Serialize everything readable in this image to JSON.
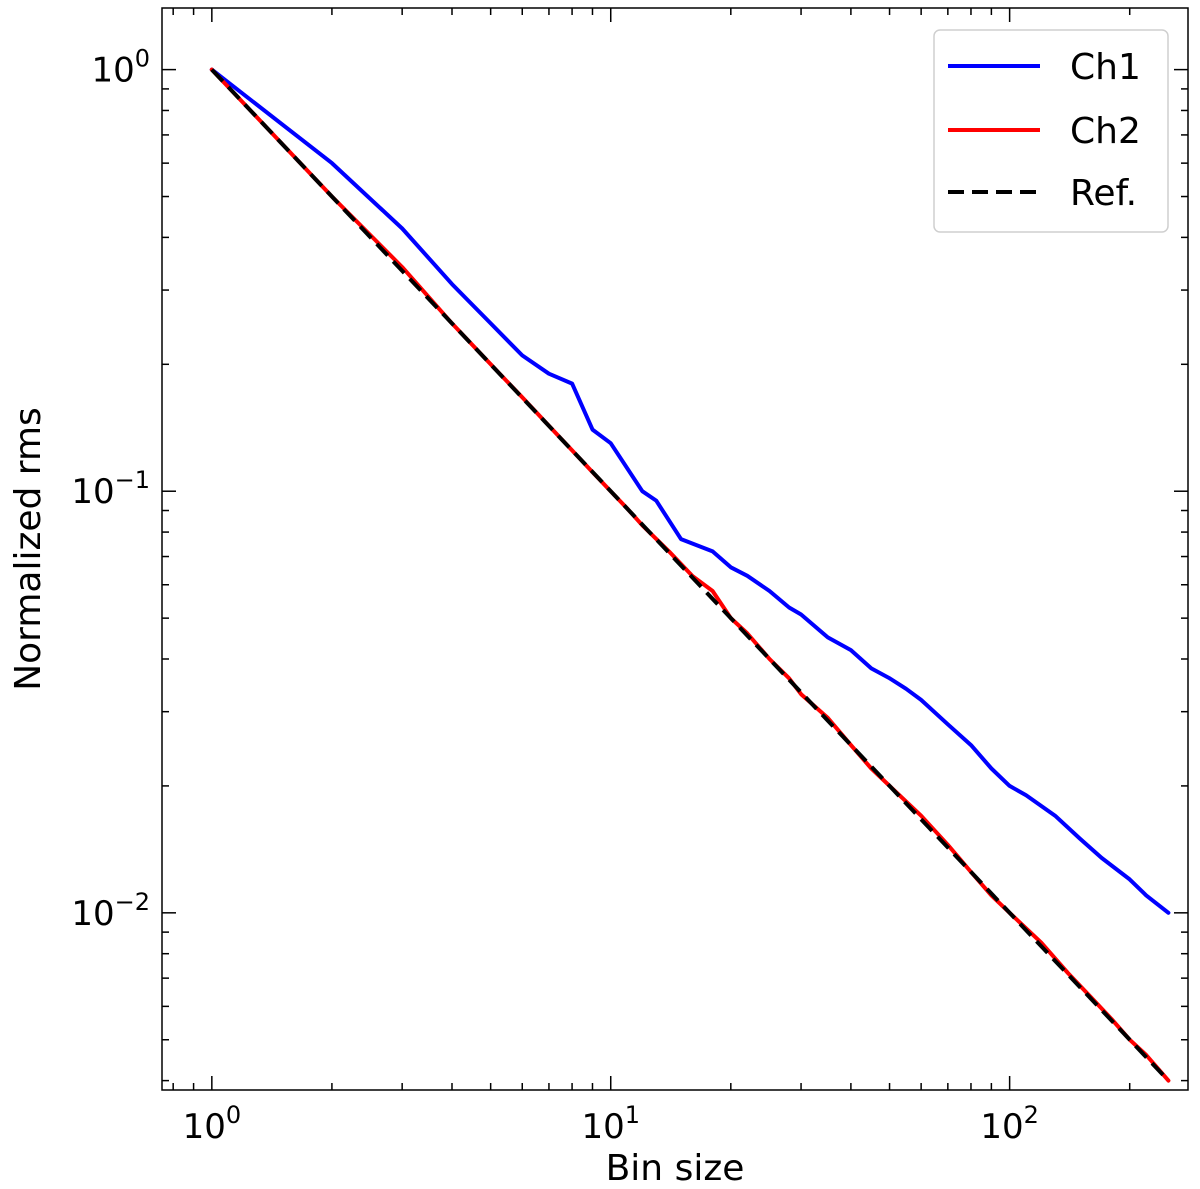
{
  "chart_data": {
    "type": "line",
    "title": "",
    "xlabel": "Bin size",
    "ylabel": "Normalized rms",
    "xscale": "log",
    "yscale": "log",
    "xlim": [
      0.75,
      280
    ],
    "ylim": [
      0.0038,
      1.4
    ],
    "grid": false,
    "legend_position": "top-right",
    "x_ticks": [
      {
        "value": 1,
        "base": "10",
        "exp": "0"
      },
      {
        "value": 10,
        "base": "10",
        "exp": "1"
      },
      {
        "value": 100,
        "base": "10",
        "exp": "2"
      }
    ],
    "y_ticks": [
      {
        "value": 1,
        "base": "10",
        "exp": "0"
      },
      {
        "value": 0.1,
        "base": "10",
        "exp": "−1"
      },
      {
        "value": 0.01,
        "base": "10",
        "exp": "−2"
      }
    ],
    "series": [
      {
        "name": "Ch1",
        "color": "#0000ff",
        "style": "solid",
        "points": [
          [
            1,
            1.0
          ],
          [
            2,
            0.6
          ],
          [
            3,
            0.42
          ],
          [
            4,
            0.31
          ],
          [
            5,
            0.25
          ],
          [
            6,
            0.21
          ],
          [
            7,
            0.19
          ],
          [
            8,
            0.18
          ],
          [
            9,
            0.14
          ],
          [
            10,
            0.13
          ],
          [
            12,
            0.1
          ],
          [
            13,
            0.095
          ],
          [
            15,
            0.077
          ],
          [
            18,
            0.072
          ],
          [
            20,
            0.066
          ],
          [
            22,
            0.063
          ],
          [
            25,
            0.058
          ],
          [
            28,
            0.053
          ],
          [
            30,
            0.051
          ],
          [
            35,
            0.045
          ],
          [
            40,
            0.042
          ],
          [
            45,
            0.038
          ],
          [
            50,
            0.036
          ],
          [
            55,
            0.034
          ],
          [
            60,
            0.032
          ],
          [
            70,
            0.028
          ],
          [
            80,
            0.025
          ],
          [
            90,
            0.022
          ],
          [
            100,
            0.02
          ],
          [
            110,
            0.019
          ],
          [
            130,
            0.017
          ],
          [
            150,
            0.015
          ],
          [
            170,
            0.0135
          ],
          [
            200,
            0.012
          ],
          [
            220,
            0.011
          ],
          [
            250,
            0.01
          ]
        ]
      },
      {
        "name": "Ch2",
        "color": "#ff0000",
        "style": "solid",
        "points": [
          [
            1,
            1.0
          ],
          [
            2,
            0.5
          ],
          [
            3,
            0.34
          ],
          [
            4,
            0.25
          ],
          [
            5,
            0.2
          ],
          [
            6,
            0.167
          ],
          [
            7,
            0.143
          ],
          [
            8,
            0.125
          ],
          [
            9,
            0.111
          ],
          [
            10,
            0.1
          ],
          [
            11,
            0.091
          ],
          [
            12,
            0.083
          ],
          [
            14,
            0.072
          ],
          [
            16,
            0.063
          ],
          [
            18,
            0.058
          ],
          [
            20,
            0.05
          ],
          [
            22,
            0.046
          ],
          [
            25,
            0.04
          ],
          [
            28,
            0.036
          ],
          [
            30,
            0.033
          ],
          [
            35,
            0.029
          ],
          [
            40,
            0.025
          ],
          [
            45,
            0.022
          ],
          [
            50,
            0.02
          ],
          [
            60,
            0.017
          ],
          [
            70,
            0.0145
          ],
          [
            80,
            0.0125
          ],
          [
            90,
            0.011
          ],
          [
            100,
            0.01
          ],
          [
            120,
            0.0085
          ],
          [
            140,
            0.0072
          ],
          [
            160,
            0.0063
          ],
          [
            180,
            0.0056
          ],
          [
            200,
            0.005
          ],
          [
            220,
            0.0046
          ],
          [
            250,
            0.004
          ]
        ]
      },
      {
        "name": "Ref.",
        "color": "#000000",
        "style": "dashed",
        "points": [
          [
            1,
            1.0
          ],
          [
            250,
            0.004
          ]
        ]
      }
    ]
  }
}
